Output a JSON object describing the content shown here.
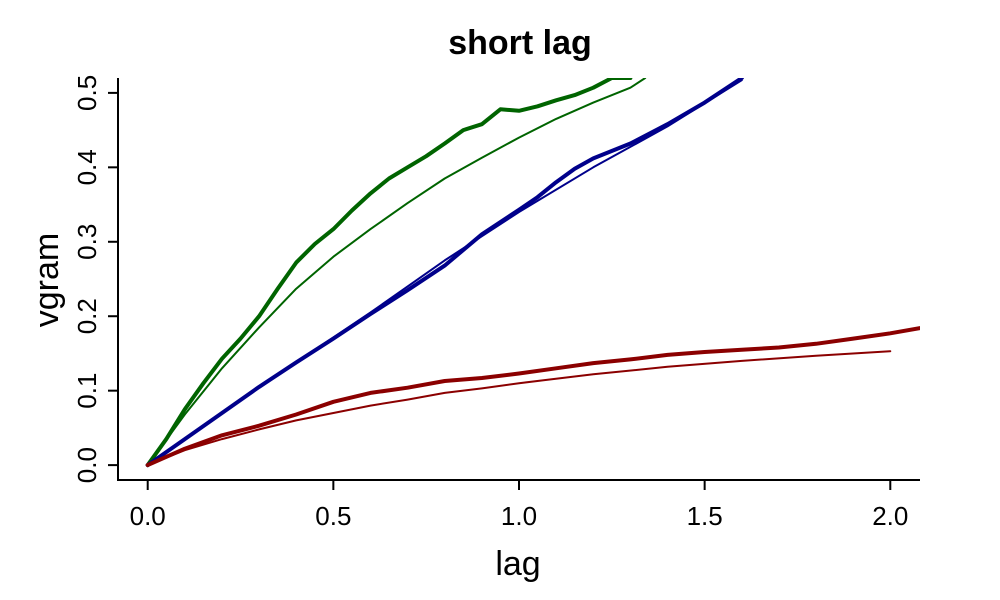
{
  "chart_data": {
    "type": "line",
    "title": "short lag",
    "xlabel": "lag",
    "ylabel": "vgram",
    "xlim": [
      -0.08,
      2.08
    ],
    "ylim": [
      -0.02,
      0.52
    ],
    "xticks": [
      "0.0",
      "0.5",
      "1.0",
      "1.5",
      "2.0"
    ],
    "yticks": [
      "0.0",
      "0.1",
      "0.2",
      "0.3",
      "0.4",
      "0.5"
    ],
    "grid": false,
    "legend": "none",
    "series": [
      {
        "color": "#006400",
        "style": "thick",
        "x": [
          0,
          0.05,
          0.1,
          0.15,
          0.2,
          0.25,
          0.3,
          0.35,
          0.4,
          0.45,
          0.5,
          0.55,
          0.6,
          0.65,
          0.7,
          0.75,
          0.8,
          0.85,
          0.9,
          0.95,
          1.0,
          1.05,
          1.1,
          1.15,
          1.2,
          1.25,
          1.3
        ],
        "y": [
          0,
          0.035,
          0.075,
          0.11,
          0.143,
          0.17,
          0.2,
          0.237,
          0.272,
          0.297,
          0.317,
          0.342,
          0.365,
          0.385,
          0.4,
          0.415,
          0.432,
          0.45,
          0.458,
          0.478,
          0.476,
          0.482,
          0.49,
          0.497,
          0.507,
          0.52,
          0.52
        ]
      },
      {
        "color": "#006400",
        "style": "thin",
        "x": [
          0,
          0.1,
          0.2,
          0.3,
          0.4,
          0.5,
          0.6,
          0.7,
          0.8,
          0.9,
          1.0,
          1.1,
          1.2,
          1.3,
          1.34
        ],
        "y": [
          0,
          0.068,
          0.13,
          0.185,
          0.237,
          0.28,
          0.317,
          0.352,
          0.385,
          0.413,
          0.44,
          0.465,
          0.487,
          0.507,
          0.52
        ]
      },
      {
        "color": "#00008b",
        "style": "thick",
        "x": [
          0,
          0.1,
          0.2,
          0.3,
          0.4,
          0.5,
          0.6,
          0.7,
          0.8,
          0.9,
          1.0,
          1.05,
          1.1,
          1.15,
          1.2,
          1.3,
          1.4,
          1.5,
          1.6
        ],
        "y": [
          0,
          0.035,
          0.07,
          0.105,
          0.138,
          0.17,
          0.203,
          0.235,
          0.268,
          0.31,
          0.343,
          0.36,
          0.38,
          0.398,
          0.412,
          0.432,
          0.458,
          0.487,
          0.52
        ]
      },
      {
        "color": "#00008b",
        "style": "thin",
        "x": [
          0,
          0.2,
          0.4,
          0.6,
          0.8,
          1.0,
          1.2,
          1.4,
          1.6
        ],
        "y": [
          0,
          0.07,
          0.138,
          0.205,
          0.275,
          0.34,
          0.4,
          0.455,
          0.517
        ]
      },
      {
        "color": "#8b0000",
        "style": "thick",
        "x": [
          0,
          0.1,
          0.2,
          0.3,
          0.4,
          0.5,
          0.6,
          0.7,
          0.8,
          0.9,
          1.0,
          1.1,
          1.2,
          1.3,
          1.4,
          1.5,
          1.6,
          1.7,
          1.8,
          1.9,
          2.0,
          2.08
        ],
        "y": [
          0,
          0.022,
          0.04,
          0.053,
          0.068,
          0.085,
          0.097,
          0.104,
          0.113,
          0.117,
          0.123,
          0.13,
          0.137,
          0.142,
          0.148,
          0.152,
          0.155,
          0.158,
          0.163,
          0.17,
          0.177,
          0.184
        ]
      },
      {
        "color": "#8b0000",
        "style": "thin",
        "x": [
          0,
          0.1,
          0.2,
          0.3,
          0.4,
          0.5,
          0.6,
          0.7,
          0.8,
          0.9,
          1.0,
          1.2,
          1.4,
          1.6,
          1.8,
          2.0
        ],
        "y": [
          0,
          0.02,
          0.035,
          0.048,
          0.06,
          0.07,
          0.08,
          0.088,
          0.097,
          0.103,
          0.11,
          0.122,
          0.132,
          0.14,
          0.147,
          0.153
        ]
      }
    ]
  }
}
